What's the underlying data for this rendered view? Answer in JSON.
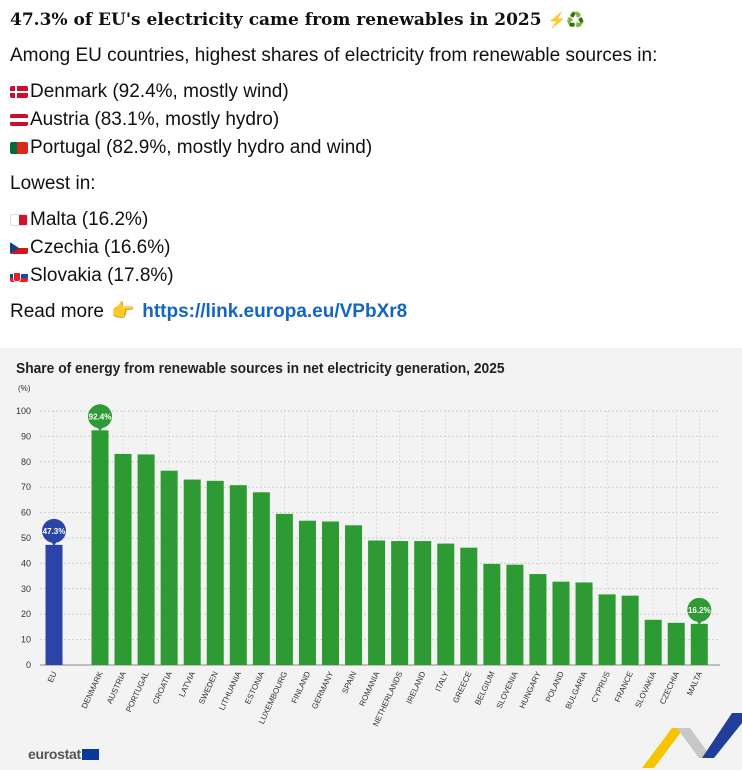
{
  "post": {
    "title": "47.3% of EU's electricity came from renewables in 2025",
    "title_emojis": "⚡♻️",
    "intro": "Among EU countries, highest shares of electricity from renewable sources in:",
    "highest": [
      {
        "flag": "denmark-flag",
        "text": "Denmark (92.4%, mostly wind)"
      },
      {
        "flag": "austria-flag",
        "text": "Austria (83.1%, mostly hydro)"
      },
      {
        "flag": "portugal-flag",
        "text": "Portugal (82.9%, mostly hydro and wind)"
      }
    ],
    "lowest_label": "Lowest in:",
    "lowest": [
      {
        "flag": "malta-flag",
        "text": "Malta (16.2%)"
      },
      {
        "flag": "czechia-flag",
        "text": "Czechia (16.6%)"
      },
      {
        "flag": "slovakia-flag",
        "text": "Slovakia (17.8%)"
      }
    ],
    "read_more": "Read more",
    "link": "https://link.europa.eu/VPbXr8"
  },
  "chart_data": {
    "type": "bar",
    "title": "Share of energy from renewable sources in net electricity generation, 2025",
    "ylabel": "(%)",
    "ylim": [
      0,
      100
    ],
    "yticks": [
      0,
      10,
      20,
      30,
      40,
      50,
      60,
      70,
      80,
      90,
      100
    ],
    "grid": true,
    "categories": [
      "EU",
      "DENMARK",
      "AUSTRIA",
      "PORTUGAL",
      "CROATIA",
      "LATVIA",
      "SWEDEN",
      "LITHUANIA",
      "ESTONIA",
      "LUXEMBOURG",
      "FINLAND",
      "GERMANY",
      "SPAIN",
      "ROMANIA",
      "NETHERLANDS",
      "IRELAND",
      "ITALY",
      "GREECE",
      "BELGIUM",
      "SLOVENIA",
      "HUNGARY",
      "POLAND",
      "BULGARIA",
      "CYPRUS",
      "FRANCE",
      "SLOVAKIA",
      "CZECHIA",
      "MALTA"
    ],
    "values": [
      47.3,
      92.4,
      83.1,
      82.9,
      76.5,
      73.0,
      72.5,
      70.8,
      68.0,
      59.5,
      56.8,
      56.5,
      55.0,
      49.0,
      48.8,
      48.8,
      47.8,
      46.2,
      39.8,
      39.5,
      35.8,
      32.8,
      32.5,
      27.8,
      27.3,
      17.8,
      16.6,
      16.2
    ],
    "callouts": [
      {
        "category": "EU",
        "label": "47.3%"
      },
      {
        "category": "DENMARK",
        "label": "92.4%"
      },
      {
        "category": "MALTA",
        "label": "16.2%"
      }
    ],
    "colors": {
      "eu": "#2a44a8",
      "country": "#2e9a34",
      "grid": "#cfcfcf",
      "background": "#f3f3f3"
    },
    "source": "eurostat"
  }
}
